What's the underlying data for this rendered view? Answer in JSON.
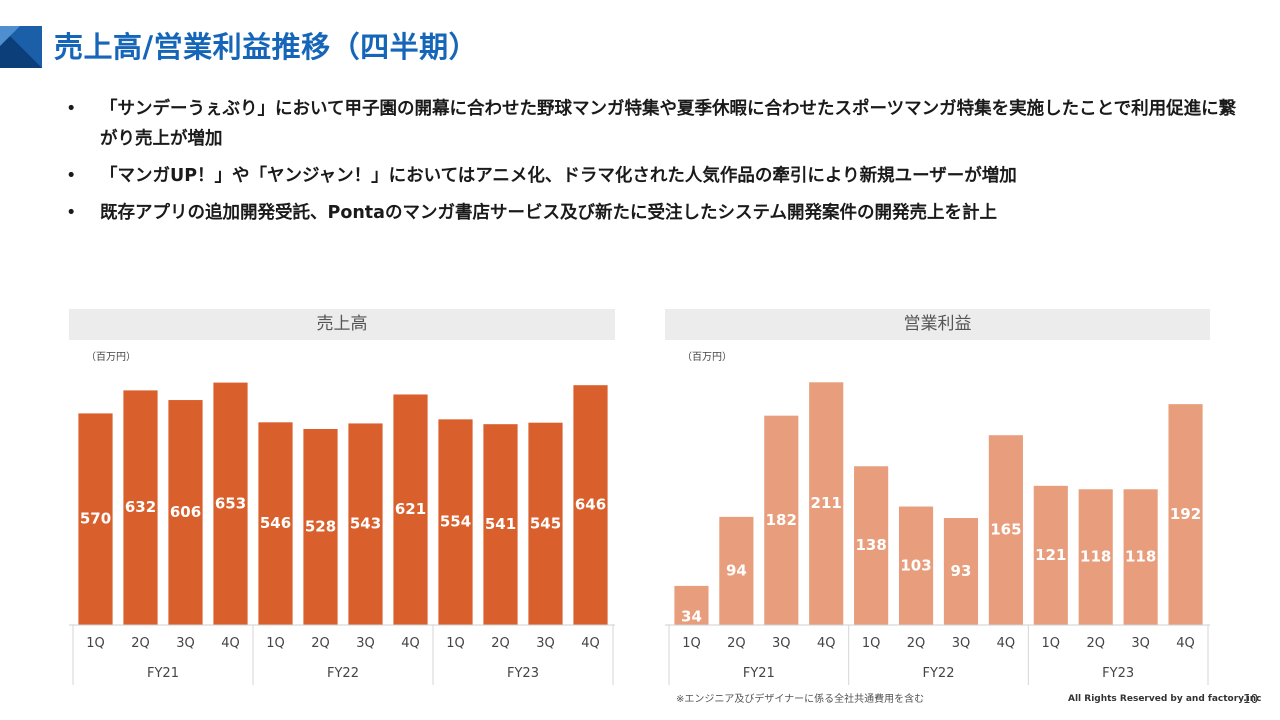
{
  "header": {
    "title": "売上高/営業利益推移（四半期）"
  },
  "bullets": [
    "「サンデーうぇぶり」において甲子園の開幕に合わせた野球マンガ特集や夏季休暇に合わせたスポーツマンガ特集を実施したことで利用促進に繋がり売上が増加",
    "「マンガUP！」や「ヤンジャン！」においてはアニメ化、ドラマ化された人気作品の牽引により新規ユーザーが増加",
    "既存アプリの追加開発受託、Pontaのマンガ書店サービス及び新たに受注したシステム開発案件の開発売上を計上"
  ],
  "chart_data": [
    {
      "type": "bar",
      "title": "売上高",
      "unit": "（百万円）",
      "categories": [
        "1Q",
        "2Q",
        "3Q",
        "4Q",
        "1Q",
        "2Q",
        "3Q",
        "4Q",
        "1Q",
        "2Q",
        "3Q",
        "4Q"
      ],
      "groups": [
        "FY21",
        "FY22",
        "FY23"
      ],
      "values": [
        570,
        632,
        606,
        653,
        546,
        528,
        543,
        621,
        554,
        541,
        545,
        646
      ],
      "ylim": [
        0,
        660
      ],
      "color": "#d9602c",
      "grid": false
    },
    {
      "type": "bar",
      "title": "営業利益",
      "unit": "（百万円）",
      "categories": [
        "1Q",
        "2Q",
        "3Q",
        "4Q",
        "1Q",
        "2Q",
        "3Q",
        "4Q",
        "1Q",
        "2Q",
        "3Q",
        "4Q"
      ],
      "groups": [
        "FY21",
        "FY22",
        "FY23"
      ],
      "values": [
        34,
        94,
        182,
        211,
        138,
        103,
        93,
        165,
        121,
        118,
        118,
        192
      ],
      "ylim": [
        0,
        213
      ],
      "color": "#e89e7c",
      "grid": false
    }
  ],
  "footer": {
    "note": "※エンジニア及びデザイナーに係る全社共通費用を含む",
    "rights": "All Rights Reserved by and factory.inc",
    "page": "10"
  },
  "colors": {
    "accent": "#1565b8",
    "corner": "#1a5fa8"
  }
}
